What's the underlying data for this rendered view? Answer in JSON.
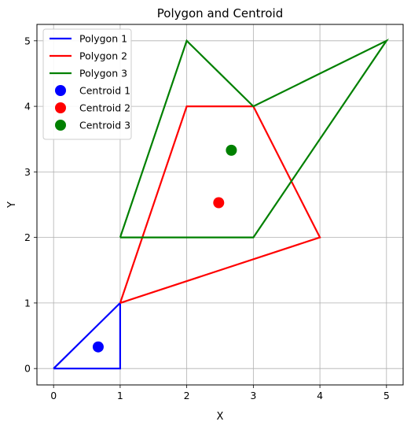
{
  "chart_data": {
    "type": "line",
    "title": "Polygon and Centroid",
    "xlabel": "X",
    "ylabel": "Y",
    "xlim": [
      -0.25,
      5.25
    ],
    "ylim": [
      -0.25,
      5.25
    ],
    "xticks": [
      0,
      1,
      2,
      3,
      4,
      5
    ],
    "yticks": [
      0,
      1,
      2,
      3,
      4,
      5
    ],
    "grid": true,
    "legend_position": "upper-left",
    "polygons": [
      {
        "name": "Polygon 1",
        "color": "#0000ff",
        "points": [
          [
            0,
            0
          ],
          [
            1,
            0
          ],
          [
            1,
            1
          ],
          [
            0,
            0
          ]
        ]
      },
      {
        "name": "Polygon 2",
        "color": "#ff0000",
        "points": [
          [
            1,
            1
          ],
          [
            4,
            2
          ],
          [
            3,
            4
          ],
          [
            2,
            4
          ],
          [
            1,
            1
          ]
        ]
      },
      {
        "name": "Polygon 3",
        "color": "#008000",
        "points": [
          [
            1,
            2
          ],
          [
            3,
            2
          ],
          [
            5,
            5
          ],
          [
            3,
            4
          ],
          [
            2,
            5
          ],
          [
            1,
            2
          ]
        ]
      }
    ],
    "centroids": [
      {
        "name": "Centroid 1",
        "color": "#0000ff",
        "x": 0.67,
        "y": 0.33
      },
      {
        "name": "Centroid 2",
        "color": "#ff0000",
        "x": 2.48,
        "y": 2.53
      },
      {
        "name": "Centroid 3",
        "color": "#008000",
        "x": 2.67,
        "y": 3.33
      }
    ]
  }
}
